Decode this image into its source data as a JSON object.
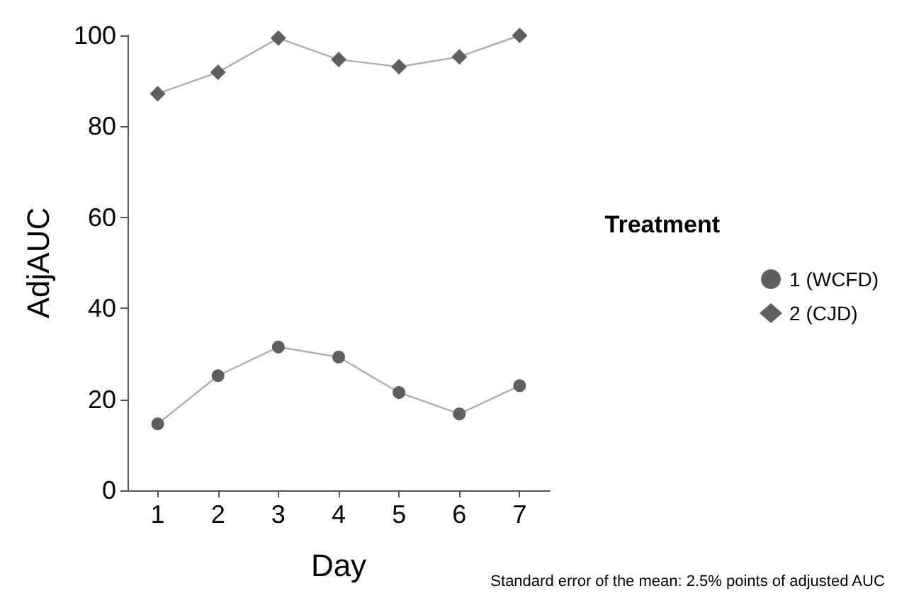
{
  "chart_data": {
    "type": "line",
    "xlabel": "Day",
    "ylabel": "AdjAUC",
    "legend_title": "Treatment",
    "categories": [
      "1",
      "2",
      "3",
      "4",
      "5",
      "6",
      "7"
    ],
    "series": [
      {
        "name": "1 (WCFD)",
        "color": "#5f5f5f",
        "marker": "circle",
        "values": [
          14.6,
          25.2,
          31.5,
          29.3,
          21.5,
          16.8,
          23
        ]
      },
      {
        "name": "2 (CJD)",
        "color": "#5f5f5f",
        "marker": "diamond",
        "values": [
          87.2,
          91.9,
          99.4,
          94.7,
          93.1,
          95.3,
          100
        ]
      }
    ],
    "ylim": [
      0,
      100
    ],
    "yticks": [
      0,
      20,
      40,
      60,
      80,
      100
    ],
    "grid": false,
    "legend": "right",
    "annotations": [
      "Standard error of the mean: 2.5% points of adjusted AUC"
    ]
  }
}
